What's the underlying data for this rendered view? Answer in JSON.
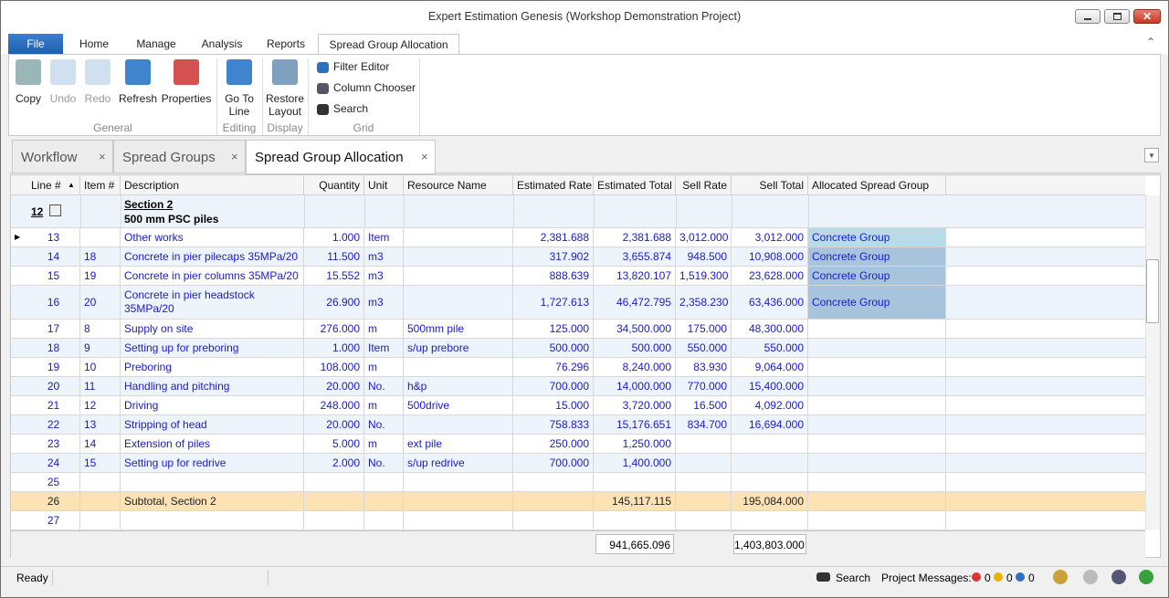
{
  "window": {
    "title": "Expert Estimation Genesis (Workshop Demonstration Project)"
  },
  "ribbon": {
    "tabs": [
      "File",
      "Home",
      "Manage",
      "Analysis",
      "Reports",
      "Spread Group Allocation"
    ],
    "groups": [
      {
        "label": "General",
        "buttons": [
          "Copy",
          "Undo",
          "Redo",
          "Refresh",
          "Properties"
        ]
      },
      {
        "label": "Editing",
        "buttons": [
          "Go To Line"
        ]
      },
      {
        "label": "Display",
        "buttons": [
          "Restore Layout"
        ]
      },
      {
        "label": "Grid",
        "buttons": [
          "Filter Editor",
          "Column Chooser",
          "Search"
        ]
      }
    ]
  },
  "doc_tabs": [
    "Workflow",
    "Spread Groups",
    "Spread Group Allocation"
  ],
  "table": {
    "columns": [
      "Line #",
      "Item #",
      "Description",
      "Quantity",
      "Unit",
      "Resource Name",
      "Estimated Rate",
      "Estimated Total",
      "Sell Rate",
      "Sell Total",
      "Allocated Spread Group"
    ],
    "section": {
      "line": "12",
      "title": "Section 2",
      "subtitle": "500 mm PSC piles"
    },
    "rows": [
      [
        "13",
        null,
        "Other works",
        "1.000",
        "Item",
        null,
        "2,381.688",
        "2,381.688",
        "3,012.000",
        "3,012.000",
        "Concrete Group"
      ],
      [
        "14",
        "18",
        "Concrete in pier pilecaps 35MPa/20",
        "11.500",
        "m3",
        null,
        "317.902",
        "3,655.874",
        "948.500",
        "10,908.000",
        "Concrete Group"
      ],
      [
        "15",
        "19",
        "Concrete in pier columns 35MPa/20",
        "15.552",
        "m3",
        null,
        "888.639",
        "13,820.107",
        "1,519.300",
        "23,628.000",
        "Concrete Group"
      ],
      [
        "16",
        "20",
        "Concrete in pier headstock 35MPa/20",
        "26.900",
        "m3",
        null,
        "1,727.613",
        "46,472.795",
        "2,358.230",
        "63,436.000",
        "Concrete Group"
      ],
      [
        "17",
        "8",
        "Supply on site",
        "276.000",
        "m",
        "500mm pile",
        "125.000",
        "34,500.000",
        "175.000",
        "48,300.000",
        null
      ],
      [
        "18",
        "9",
        "Setting up for preboring",
        "1.000",
        "Item",
        "s/up prebore",
        "500.000",
        "500.000",
        "550.000",
        "550.000",
        null
      ],
      [
        "19",
        "10",
        "Preboring",
        "108.000",
        "m",
        null,
        "76.296",
        "8,240.000",
        "83.930",
        "9,064.000",
        null
      ],
      [
        "20",
        "11",
        "Handling and pitching",
        "20.000",
        "No.",
        "h&p",
        "700.000",
        "14,000.000",
        "770.000",
        "15,400.000",
        null
      ],
      [
        "21",
        "12",
        "Driving",
        "248.000",
        "m",
        "500drive",
        "15.000",
        "3,720.000",
        "16.500",
        "4,092.000",
        null
      ],
      [
        "22",
        "13",
        "Stripping of head",
        "20.000",
        "No.",
        null,
        "758.833",
        "15,176.651",
        "834.700",
        "16,694.000",
        null
      ],
      [
        "23",
        "14",
        "Extension of piles",
        "5.000",
        "m",
        "ext pile",
        "250.000",
        "1,250.000",
        null,
        null,
        null
      ],
      [
        "24",
        "15",
        "Setting up for redrive",
        "2.000",
        "No.",
        "s/up redrive",
        "700.000",
        "1,400.000",
        null,
        null,
        null
      ],
      [
        "25",
        null,
        null,
        null,
        null,
        null,
        null,
        null,
        null,
        null,
        null
      ],
      [
        "26",
        null,
        "Subtotal, Section 2",
        null,
        null,
        null,
        null,
        "145,117.115",
        null,
        "195,084.000",
        null
      ],
      [
        "27",
        null,
        null,
        null,
        null,
        null,
        null,
        null,
        null,
        null,
        null
      ]
    ],
    "totals": {
      "estimated_total": "941,665.096",
      "sell_total": "1,403,803.000"
    }
  },
  "status_bar": {
    "state": "Ready",
    "search": "Search",
    "messages_label": "Project Messages:",
    "errors": "0",
    "warnings": "0",
    "info": "0"
  }
}
